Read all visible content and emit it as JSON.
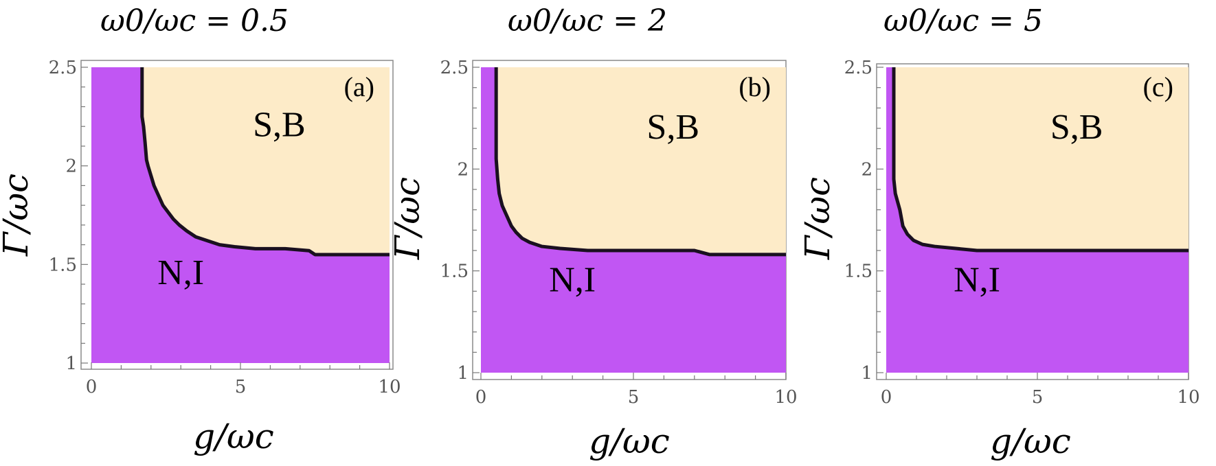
{
  "chart_data": [
    {
      "type": "area",
      "title": "ω0/ωc = 0.5",
      "panel_label": "(a)",
      "xlabel": "g/ωc",
      "ylabel": "Γ/ωc",
      "xlim": [
        0,
        10
      ],
      "ylim": [
        1,
        2.5
      ],
      "xticks": [
        "0",
        "5",
        "10"
      ],
      "yticks": [
        "1",
        "1.5",
        "2",
        "2.5"
      ],
      "regions": {
        "upper": "S,B",
        "lower": "N,I"
      },
      "colors": {
        "upper": "#fdebc8",
        "lower": "#c156f3",
        "boundary": "#1a1020"
      },
      "boundary": {
        "g": [
          1.7,
          1.7,
          1.75,
          1.8,
          1.85,
          1.9,
          2.0,
          2.1,
          2.25,
          2.4,
          2.55,
          2.75,
          2.95,
          3.2,
          3.5,
          3.9,
          4.3,
          4.8,
          5.5,
          6.5,
          7.3,
          7.5,
          8.5,
          9.8
        ],
        "gamma": [
          2.5,
          2.25,
          2.2,
          2.12,
          2.03,
          2.0,
          1.95,
          1.9,
          1.85,
          1.8,
          1.77,
          1.73,
          1.7,
          1.67,
          1.64,
          1.62,
          1.6,
          1.59,
          1.58,
          1.58,
          1.57,
          1.55,
          1.55,
          1.55
        ]
      }
    },
    {
      "type": "area",
      "title": "ω0/ωc = 2",
      "panel_label": "(b)",
      "xlabel": "g/ωc",
      "ylabel": "Γ/ωc",
      "xlim": [
        0,
        10
      ],
      "ylim": [
        1,
        2.5
      ],
      "xticks": [
        "0",
        "5",
        "10"
      ],
      "yticks": [
        "1",
        "1.5",
        "2",
        "2.5"
      ],
      "regions": {
        "upper": "S,B",
        "lower": "N,I"
      },
      "colors": {
        "upper": "#fdebc8",
        "lower": "#c156f3",
        "boundary": "#1a1020"
      },
      "boundary": {
        "g": [
          0.5,
          0.5,
          0.55,
          0.6,
          0.7,
          0.85,
          1.0,
          1.15,
          1.35,
          1.6,
          2.0,
          2.6,
          3.5,
          5.0,
          7.0,
          7.5,
          8.5,
          9.8
        ],
        "gamma": [
          2.5,
          2.05,
          1.95,
          1.88,
          1.82,
          1.77,
          1.72,
          1.69,
          1.66,
          1.64,
          1.62,
          1.61,
          1.6,
          1.6,
          1.6,
          1.58,
          1.58,
          1.58
        ]
      }
    },
    {
      "type": "area",
      "title": "ω0/ωc = 5",
      "panel_label": "(c)",
      "xlabel": "g/ωc",
      "ylabel": "Γ/ωc",
      "xlim": [
        0,
        10
      ],
      "ylim": [
        1,
        2.5
      ],
      "xticks": [
        "0",
        "5",
        "10"
      ],
      "yticks": [
        "1",
        "1.5",
        "2",
        "2.5"
      ],
      "regions": {
        "upper": "S,B",
        "lower": "N,I"
      },
      "colors": {
        "upper": "#fdebc8",
        "lower": "#c156f3",
        "boundary": "#1a1020"
      },
      "boundary": {
        "g": [
          0.25,
          0.25,
          0.3,
          0.45,
          0.55,
          0.7,
          0.9,
          1.2,
          1.6,
          2.3,
          3.0,
          5.0,
          7.5,
          9.8
        ],
        "gamma": [
          2.5,
          1.95,
          1.88,
          1.8,
          1.72,
          1.68,
          1.65,
          1.63,
          1.62,
          1.61,
          1.6,
          1.6,
          1.6,
          1.6
        ]
      }
    }
  ]
}
